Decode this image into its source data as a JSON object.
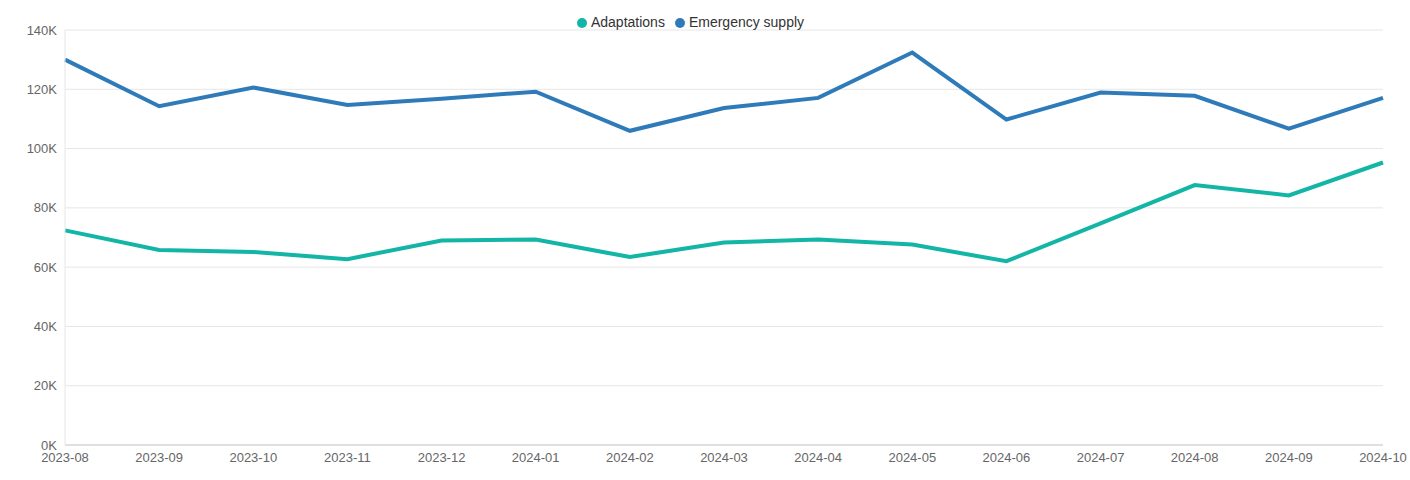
{
  "chart_data": {
    "type": "line",
    "categories": [
      "2023-08",
      "2023-09",
      "2023-10",
      "2023-11",
      "2023-12",
      "2024-01",
      "2024-02",
      "2024-03",
      "2024-04",
      "2024-05",
      "2024-06",
      "2024-07",
      "2024-08",
      "2024-09",
      "2024-10"
    ],
    "series": [
      {
        "name": "Adaptations",
        "color": "#13b5a6",
        "values": [
          72400,
          65800,
          65100,
          62700,
          69000,
          69300,
          63400,
          68300,
          69300,
          67600,
          62000,
          74800,
          87700,
          84200,
          95300
        ]
      },
      {
        "name": "Emergency supply",
        "color": "#2f7bb9",
        "values": [
          130000,
          114300,
          120600,
          114700,
          116800,
          119200,
          106000,
          113700,
          117100,
          132400,
          109800,
          118900,
          117800,
          106700,
          117100
        ]
      }
    ],
    "ylim": [
      0,
      140000
    ],
    "yticks": [
      {
        "value": 0,
        "label": "0K"
      },
      {
        "value": 20000,
        "label": "20K"
      },
      {
        "value": 40000,
        "label": "40K"
      },
      {
        "value": 60000,
        "label": "60K"
      },
      {
        "value": 80000,
        "label": "80K"
      },
      {
        "value": 100000,
        "label": "100K"
      },
      {
        "value": 120000,
        "label": "120K"
      },
      {
        "value": 140000,
        "label": "140K"
      }
    ],
    "grid": true,
    "legend": "top"
  }
}
